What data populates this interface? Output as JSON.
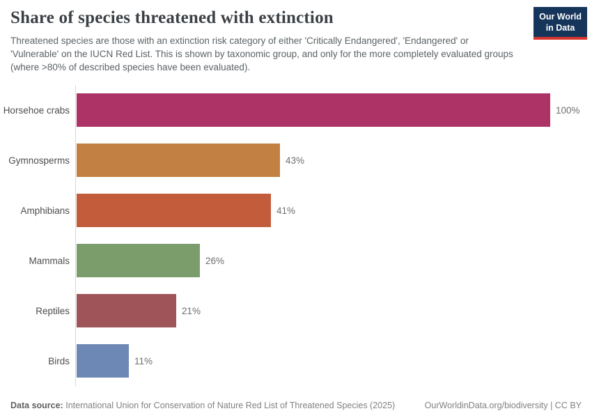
{
  "header": {
    "title": "Share of species threatened with extinction",
    "subtitle": "Threatened species are those with an extinction risk category of either 'Critically Endangered', 'Endangered' or 'Vulnerable' on the IUCN Red List. This is shown by taxonomic group, and only for the more completely evaluated groups (where >80% of described species have been evaluated).",
    "logo": {
      "line1": "Our World",
      "line2": "in Data",
      "bg_color": "#16355a",
      "accent_color": "#d8352e"
    }
  },
  "chart_data": {
    "type": "bar",
    "orientation": "horizontal",
    "title": "Share of species threatened with extinction",
    "categories": [
      "Horsehoe crabs",
      "Gymnosperms",
      "Amphibians",
      "Mammals",
      "Reptiles",
      "Birds"
    ],
    "values": [
      100,
      43,
      41,
      26,
      21,
      11
    ],
    "value_labels": [
      "100%",
      "43%",
      "41%",
      "26%",
      "21%",
      "11%"
    ],
    "bar_colors": [
      "#ad3366",
      "#c28142",
      "#c25c3a",
      "#7b9d6c",
      "#9e5458",
      "#6e88b6"
    ],
    "xlabel": "",
    "ylabel": "",
    "xlim": [
      0,
      100
    ],
    "grid": false,
    "legend": "none"
  },
  "footer": {
    "source_label": "Data source:",
    "source_text": "International Union for Conservation of Nature Red List of Threatened Species (2025)",
    "link_text": "OurWorldinData.org/biodiversity | CC BY"
  }
}
